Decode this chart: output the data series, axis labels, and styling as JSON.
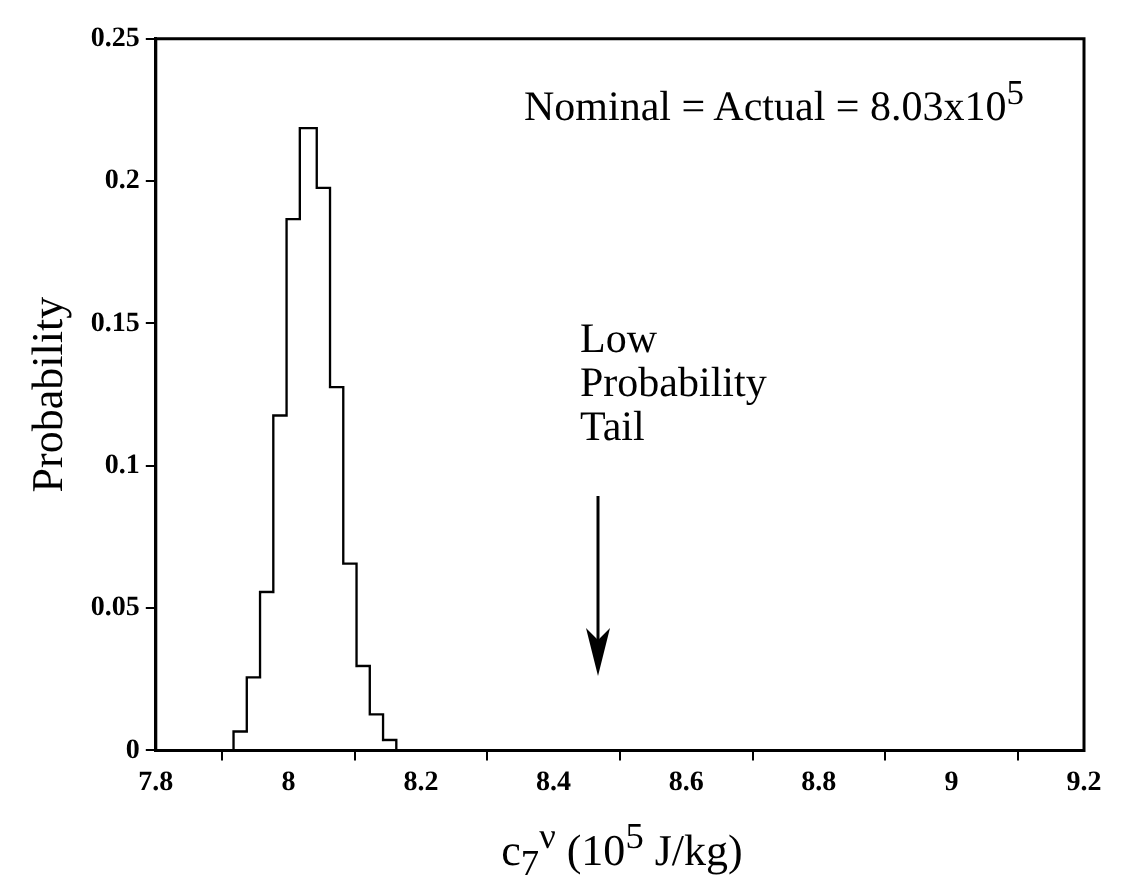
{
  "chart_data": {
    "type": "histogram",
    "bins": [
      7.92,
      7.94,
      7.96,
      7.98,
      8.0,
      8.02,
      8.04,
      8.06,
      8.08,
      8.1,
      8.12,
      8.14,
      8.16
    ],
    "values": [
      0.006,
      0.025,
      0.055,
      0.117,
      0.186,
      0.218,
      0.197,
      0.127,
      0.065,
      0.029,
      0.012,
      0.003
    ],
    "color": "#ffffff",
    "xlabel": "c$_{7}$$^{ν}$  (10$^{5}$ J/kg)",
    "ylabel": "Probability",
    "xlim": [
      7.8,
      9.2
    ],
    "xticks": [
      7.8,
      8,
      8.2,
      8.4,
      8.6,
      8.8,
      9,
      9.2
    ],
    "ylim": [
      0,
      0.25
    ],
    "yticks": [
      0,
      0.05,
      0.1,
      0.15,
      0.2,
      0.25
    ],
    "grid": false,
    "legend": false,
    "annotations": [
      "Nominal = Actual = 8.03x10$^{5}$",
      "Low Probability Tail"
    ]
  }
}
